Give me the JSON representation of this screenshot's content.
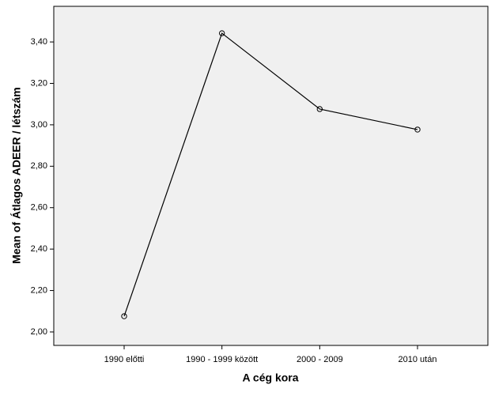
{
  "chart_data": {
    "type": "line",
    "x_label": "A cég kora",
    "y_label": "Mean of Átlagos ADEER / létszám",
    "categories": [
      "1990 előtti",
      "1990 - 1999 között",
      "2000 - 2009",
      "2010 után"
    ],
    "values": [
      2.076,
      3.442,
      3.076,
      2.977
    ],
    "color": "#000000",
    "ylim": [
      1.935,
      3.572
    ],
    "yticks": [
      {
        "value": 2.0,
        "label": "2,00"
      },
      {
        "value": 2.2,
        "label": "2,20"
      },
      {
        "value": 2.4,
        "label": "2,40"
      },
      {
        "value": 2.6,
        "label": "2,60"
      },
      {
        "value": 2.8,
        "label": "2,80"
      },
      {
        "value": 3.0,
        "label": "3,00"
      },
      {
        "value": 3.2,
        "label": "3,20"
      },
      {
        "value": 3.4,
        "label": "3,40"
      }
    ],
    "grid": false
  }
}
